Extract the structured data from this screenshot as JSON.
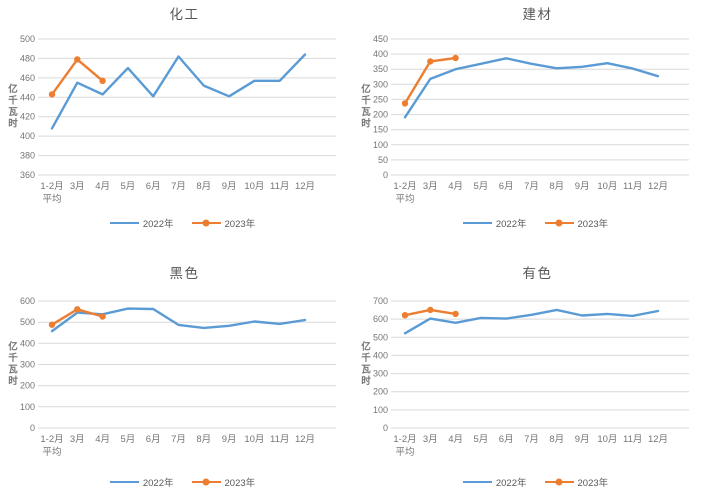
{
  "colors": {
    "series_2022": "#5B9BD5",
    "series_2023": "#ED7D31",
    "gridline": "#D9D9D9",
    "tick_text": "#757575",
    "title_text": "#595959",
    "legend_text": "#595959",
    "background": "#FFFFFF"
  },
  "chart_data": [
    {
      "type": "line",
      "title": "化工",
      "ylabel": "亿千瓦时",
      "ylim": [
        360,
        500
      ],
      "ytick_step": 20,
      "grid": true,
      "legend_position": "bottom",
      "categories": [
        "1-2月\n平均",
        "3月",
        "4月",
        "5月",
        "6月",
        "7月",
        "8月",
        "9月",
        "10月",
        "11月",
        "12月"
      ],
      "series": [
        {
          "name": "2022年",
          "color": "#5B9BD5",
          "marker": false,
          "values": [
            408,
            455,
            443,
            470,
            441,
            482,
            452,
            441,
            457,
            457,
            484
          ]
        },
        {
          "name": "2023年",
          "color": "#ED7D31",
          "marker": true,
          "values": [
            443,
            479,
            457
          ]
        }
      ]
    },
    {
      "type": "line",
      "title": "建材",
      "ylabel": "亿千瓦时",
      "ylim": [
        0,
        450
      ],
      "ytick_step": 50,
      "grid": true,
      "legend_position": "bottom",
      "categories": [
        "1-2月\n平均",
        "3月",
        "4月",
        "5月",
        "6月",
        "7月",
        "8月",
        "9月",
        "10月",
        "11月",
        "12月"
      ],
      "series": [
        {
          "name": "2022年",
          "color": "#5B9BD5",
          "marker": false,
          "values": [
            191,
            318,
            350,
            368,
            386,
            368,
            353,
            358,
            370,
            352,
            327
          ]
        },
        {
          "name": "2023年",
          "color": "#ED7D31",
          "marker": true,
          "values": [
            237,
            376,
            387
          ]
        }
      ]
    },
    {
      "type": "line",
      "title": "黑色",
      "ylabel": "亿千瓦时",
      "ylim": [
        0,
        600
      ],
      "ytick_step": 100,
      "grid": true,
      "legend_position": "bottom",
      "categories": [
        "1-2月\n平均",
        "3月",
        "4月",
        "5月",
        "6月",
        "7月",
        "8月",
        "9月",
        "10月",
        "11月",
        "12月"
      ],
      "series": [
        {
          "name": "2022年",
          "color": "#5B9BD5",
          "marker": false,
          "values": [
            458,
            545,
            537,
            564,
            562,
            487,
            473,
            483,
            503,
            492,
            510
          ]
        },
        {
          "name": "2023年",
          "color": "#ED7D31",
          "marker": true,
          "values": [
            488,
            561,
            527
          ]
        }
      ]
    },
    {
      "type": "line",
      "title": "有色",
      "ylabel": "亿千瓦时",
      "ylim": [
        0,
        700
      ],
      "ytick_step": 100,
      "grid": true,
      "legend_position": "bottom",
      "categories": [
        "1-2月\n平均",
        "3月",
        "4月",
        "5月",
        "6月",
        "7月",
        "8月",
        "9月",
        "10月",
        "11月",
        "12月"
      ],
      "series": [
        {
          "name": "2022年",
          "color": "#5B9BD5",
          "marker": false,
          "values": [
            522,
            603,
            580,
            607,
            603,
            624,
            651,
            620,
            629,
            618,
            645
          ]
        },
        {
          "name": "2023年",
          "color": "#ED7D31",
          "marker": true,
          "values": [
            622,
            651,
            629
          ]
        }
      ]
    }
  ]
}
